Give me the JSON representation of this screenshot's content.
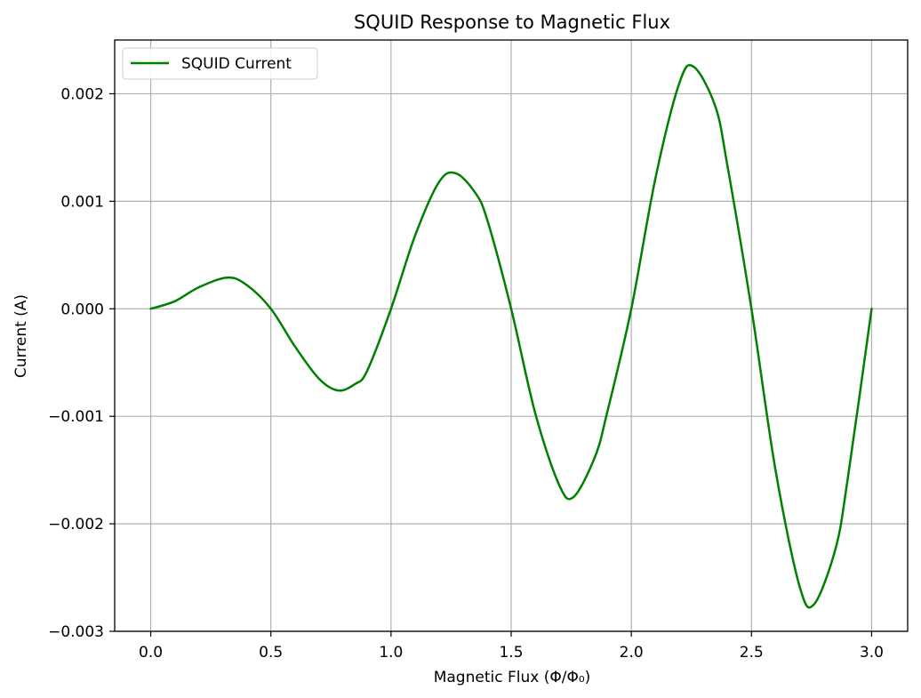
{
  "chart_data": {
    "type": "line",
    "title": "SQUID Response to Magnetic Flux",
    "xlabel": "Magnetic Flux (Φ/Φ₀)",
    "ylabel": "Current (A)",
    "xlim": [
      -0.15,
      3.15
    ],
    "ylim": [
      -0.003,
      0.0025
    ],
    "x_ticks": [
      0.0,
      0.5,
      1.0,
      1.5,
      2.0,
      2.5,
      3.0
    ],
    "x_tick_labels": [
      "0.0",
      "0.5",
      "1.0",
      "1.5",
      "2.0",
      "2.5",
      "3.0"
    ],
    "y_ticks": [
      -0.003,
      -0.002,
      -0.001,
      0.0,
      0.001,
      0.002
    ],
    "y_tick_labels": [
      "−0.003",
      "−0.002",
      "−0.001",
      "0.000",
      "0.001",
      "0.002"
    ],
    "grid": true,
    "legend_position": "top-left",
    "series": [
      {
        "name": "SQUID Current",
        "color": "#008000",
        "x": [
          0.0,
          0.1,
          0.2,
          0.32,
          0.4,
          0.5,
          0.6,
          0.7,
          0.78,
          0.85,
          0.9,
          1.0,
          1.1,
          1.2,
          1.27,
          1.35,
          1.4,
          1.5,
          1.6,
          1.7,
          1.76,
          1.85,
          1.9,
          2.0,
          2.1,
          2.2,
          2.26,
          2.35,
          2.4,
          2.5,
          2.6,
          2.7,
          2.76,
          2.85,
          2.9,
          3.0
        ],
        "y": [
          0.0,
          7e-05,
          0.0002,
          0.00029,
          0.00022,
          0.0,
          -0.00035,
          -0.00065,
          -0.00076,
          -0.0007,
          -0.00058,
          0.0,
          0.00068,
          0.00118,
          0.00126,
          0.00108,
          0.00083,
          0.0,
          -0.00097,
          -0.00164,
          -0.00175,
          -0.00137,
          -0.00096,
          0.0,
          0.00121,
          0.0021,
          0.00225,
          0.00188,
          0.00133,
          0.0,
          -0.0015,
          -0.00258,
          -0.00275,
          -0.00223,
          -0.00159,
          0.0
        ]
      }
    ]
  }
}
